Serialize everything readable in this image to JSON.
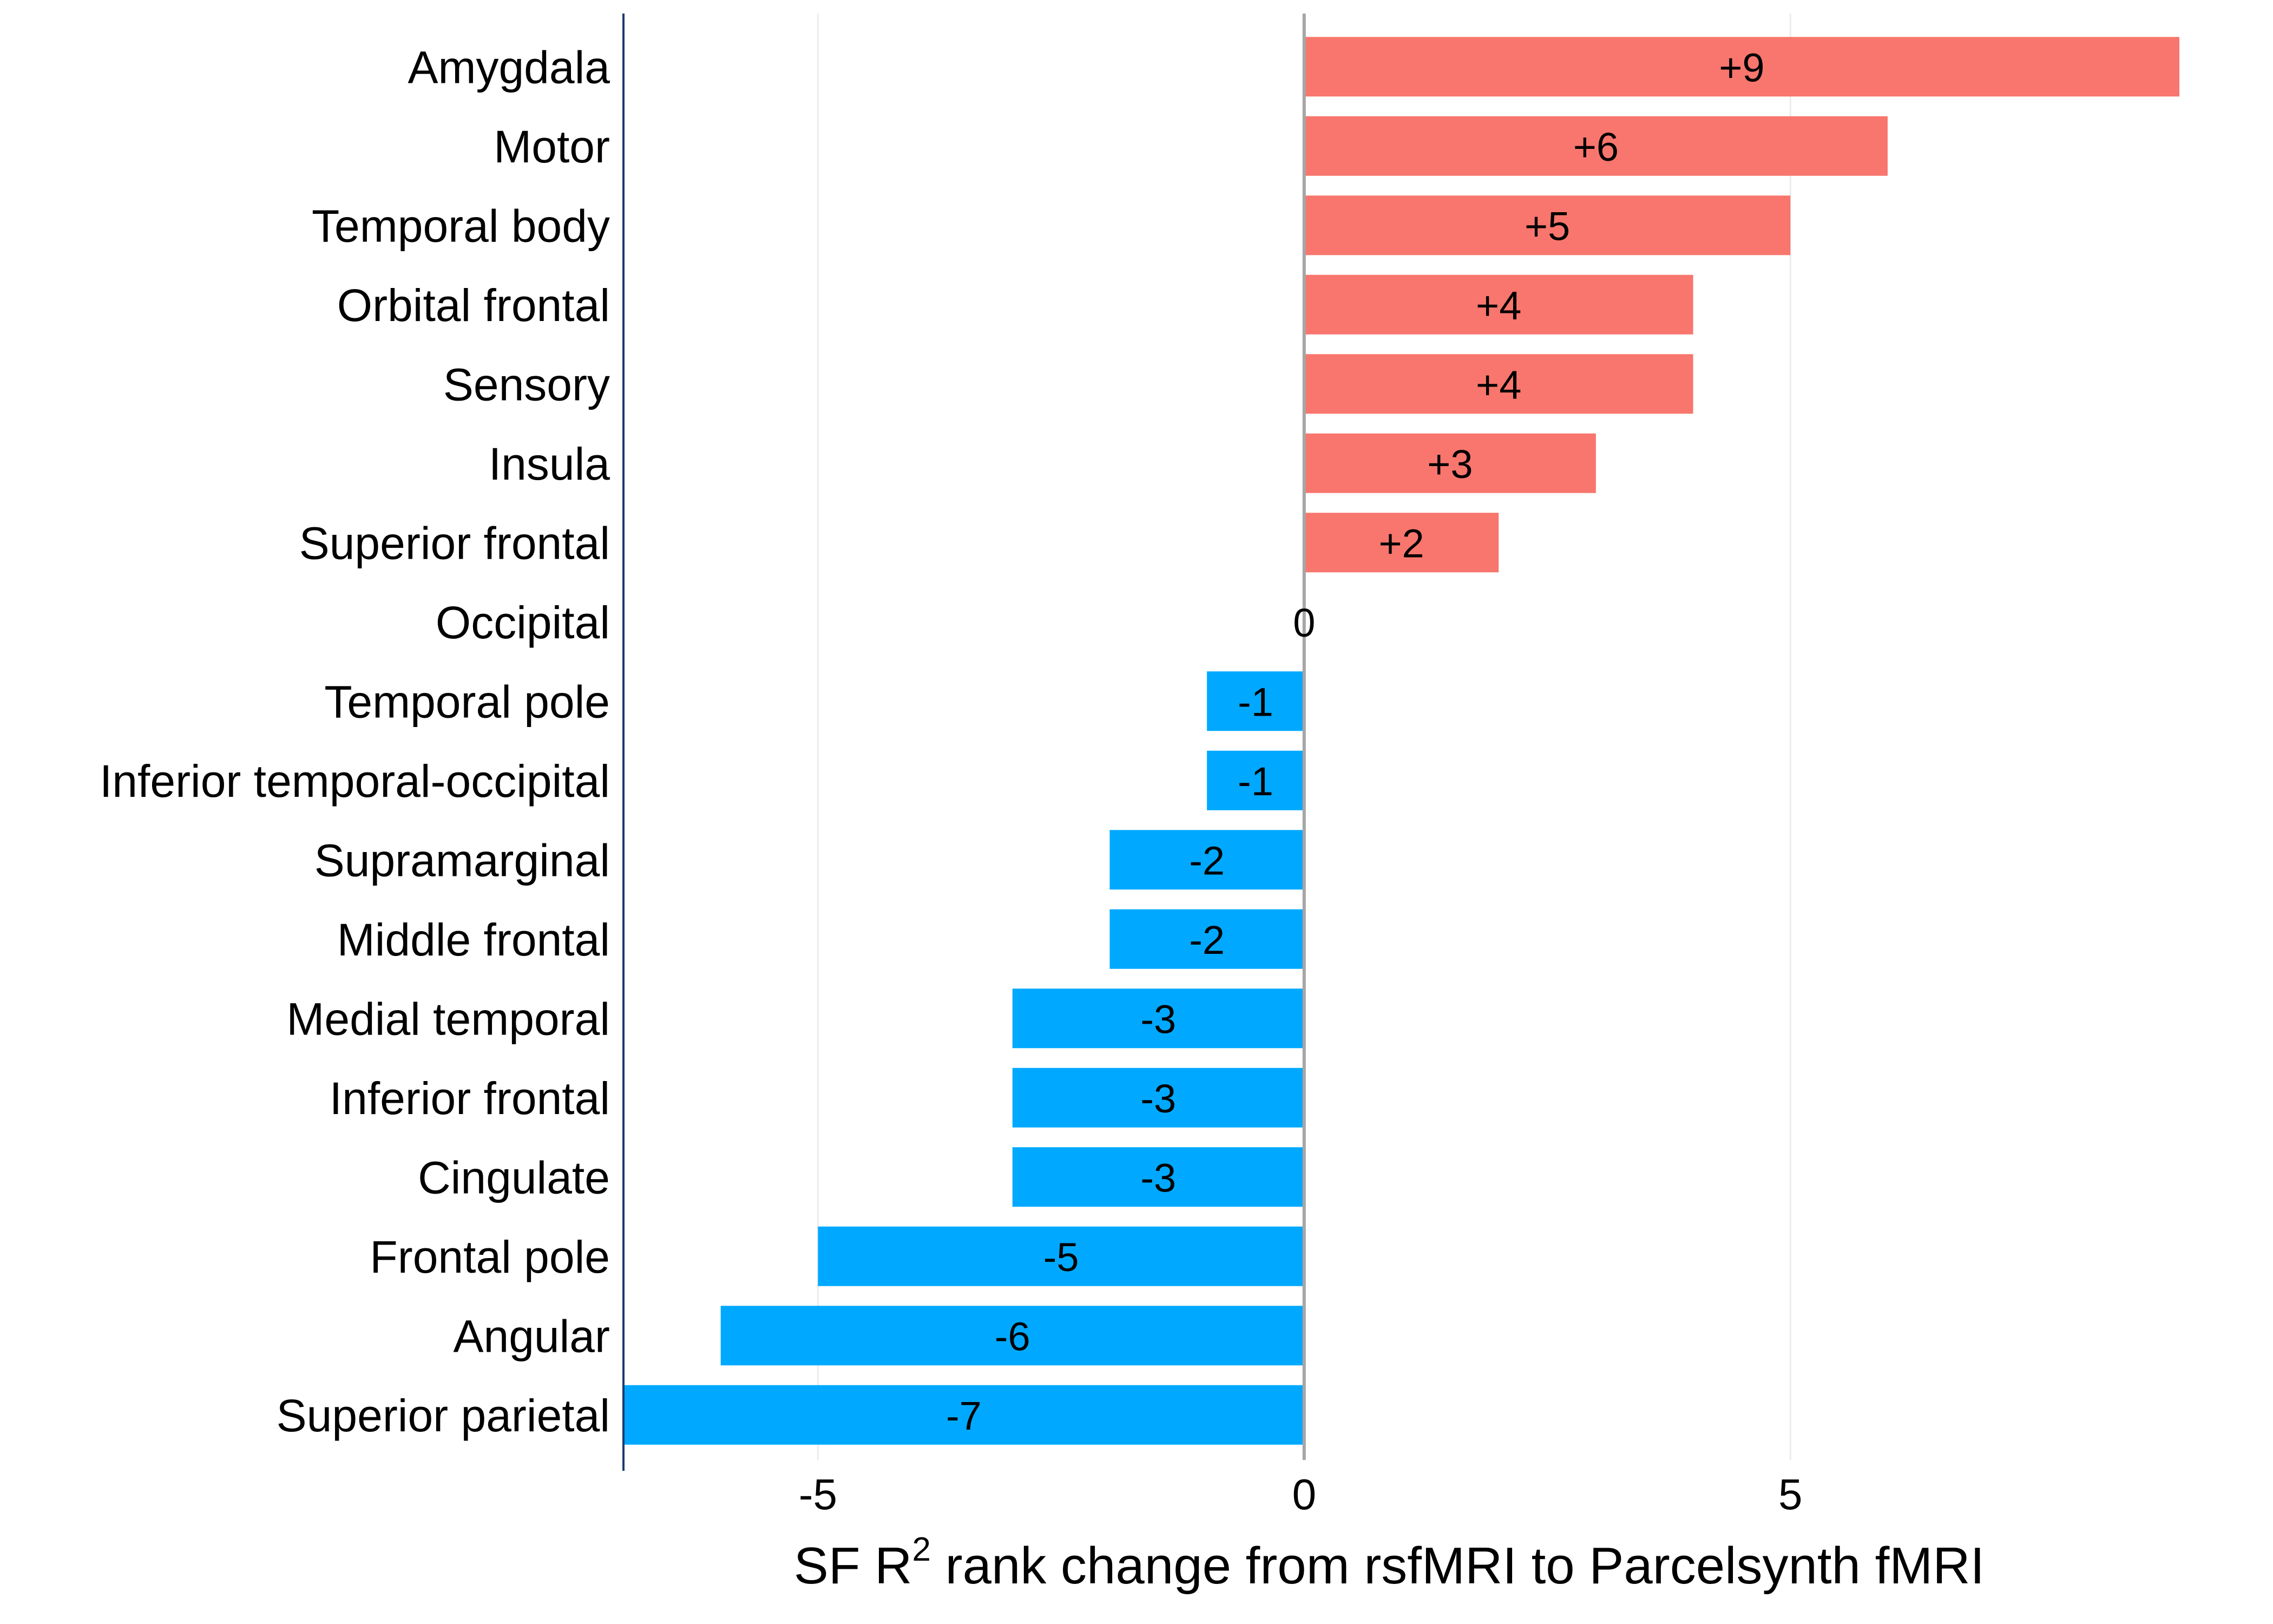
{
  "chart_data": {
    "type": "bar",
    "orientation": "horizontal",
    "categories": [
      "Amygdala",
      "Motor",
      "Temporal body",
      "Orbital frontal",
      "Sensory",
      "Insula",
      "Superior frontal",
      "Occipital",
      "Temporal pole",
      "Inferior temporal-occipital",
      "Supramarginal",
      "Middle frontal",
      "Medial temporal",
      "Inferior frontal",
      "Cingulate",
      "Frontal pole",
      "Angular",
      "Superior parietal"
    ],
    "values": [
      9,
      6,
      5,
      4,
      4,
      3,
      2,
      0,
      -1,
      -1,
      -2,
      -2,
      -3,
      -3,
      -3,
      -5,
      -6,
      -7
    ],
    "data_labels": [
      "+9",
      "+6",
      "+5",
      "+4",
      "+4",
      "+3",
      "+2",
      "0",
      "-1",
      "-1",
      "-2",
      "-2",
      "-3",
      "-3",
      "-3",
      "-5",
      "-6",
      "-7"
    ],
    "xlabel": "SF R² rank change from rsfMRI to Parcelsynth fMRI",
    "xlabel_parts": {
      "pre": "SF R",
      "sup": "2",
      "post": " rank change from rsfMRI to Parcelsynth fMRI"
    },
    "xlim": [
      -7,
      9
    ],
    "xticks": [
      -5,
      0,
      5
    ],
    "xtick_labels": [
      "-5",
      "0",
      "5"
    ],
    "grid": true,
    "colors": {
      "positive": "#F8766D",
      "negative": "#00A9FF",
      "zero_line": "#A6A6A6",
      "grid": "#EBEBEB",
      "axis": "#1F3A6E"
    }
  }
}
